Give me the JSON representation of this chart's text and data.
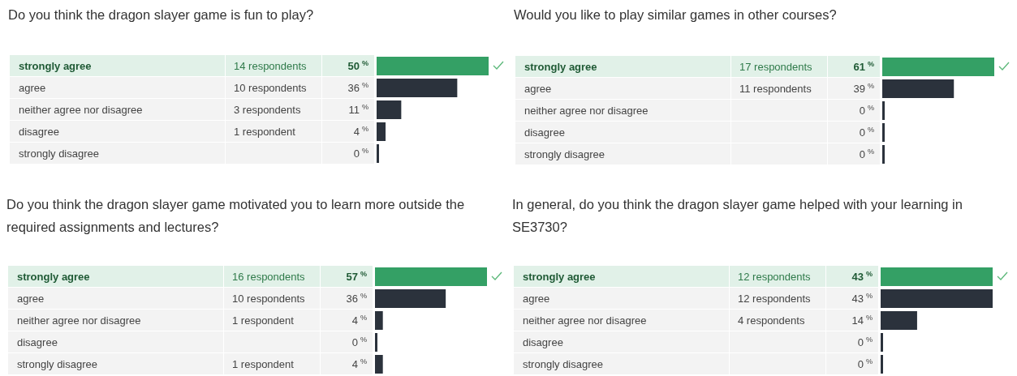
{
  "chart_data": [
    {
      "type": "bar",
      "orientation": "horizontal",
      "title": "Do you think the dragon slayer game is fun to play?",
      "categories": [
        "strongly agree",
        "agree",
        "neither agree nor disagree",
        "disagree",
        "strongly disagree"
      ],
      "values": [
        50,
        36,
        11,
        4,
        0
      ],
      "colors": [
        "#34a065",
        "#2b323c",
        "#2b323c",
        "#2b323c",
        "#2b323c"
      ],
      "value_labels": [
        "50$^{%}$",
        "36$^{%}$",
        "11$^{%}$",
        "4$^{%}$",
        "0$^{%}$"
      ],
      "annotations": [
        "14 respondents",
        "10 respondents",
        "3 respondents",
        "1 respondent"
      ]
    },
    {
      "type": "bar",
      "orientation": "horizontal",
      "title": "Would you like to play similar games in other courses?",
      "categories": [
        "strongly agree",
        "agree",
        "neither agree nor disagree",
        "disagree",
        "strongly disagree"
      ],
      "values": [
        61,
        39,
        0,
        0,
        0
      ],
      "colors": [
        "#34a065",
        "#2b323c",
        "#2b323c",
        "#2b323c",
        "#2b323c"
      ],
      "value_labels": [
        "61$^{%}$",
        "39$^{%}$",
        "0$^{%}$",
        "0$^{%}$",
        "0$^{%}$"
      ],
      "annotations": [
        "17 respondents",
        "11 respondents"
      ]
    },
    {
      "type": "bar",
      "orientation": "horizontal",
      "title": "Do you think the dragon slayer game motivated you to learn more outside the required assignments and lectures?",
      "categories": [
        "strongly agree",
        "agree",
        "neither agree nor disagree",
        "disagree",
        "strongly disagree"
      ],
      "values": [
        57,
        36,
        4,
        0,
        4
      ],
      "colors": [
        "#34a065",
        "#2b323c",
        "#2b323c",
        "#2b323c",
        "#2b323c"
      ],
      "value_labels": [
        "57$^{%}$",
        "36$^{%}$",
        "4$^{%}$",
        "0$^{%}$",
        "4$^{%}$"
      ],
      "annotations": [
        "16 respondents",
        "10 respondents",
        "1 respondent",
        "1 respondent"
      ]
    },
    {
      "type": "bar",
      "orientation": "horizontal",
      "title": "In general, do you think the dragon slayer game helped with your learning in SE3730?",
      "categories": [
        "strongly agree",
        "agree",
        "neither agree nor disagree",
        "disagree",
        "strongly disagree"
      ],
      "values": [
        43,
        43,
        14,
        0,
        0
      ],
      "colors": [
        "#34a065",
        "#2b323c",
        "#2b323c",
        "#2b323c",
        "#2b323c"
      ],
      "value_labels": [
        "43$^{%}$",
        "43$^{%}$",
        "14$^{%}$",
        "0$^{%}$",
        "0$^{%}$"
      ],
      "annotations": [
        "12 respondents",
        "12 respondents",
        "4 respondents"
      ]
    }
  ]
}
